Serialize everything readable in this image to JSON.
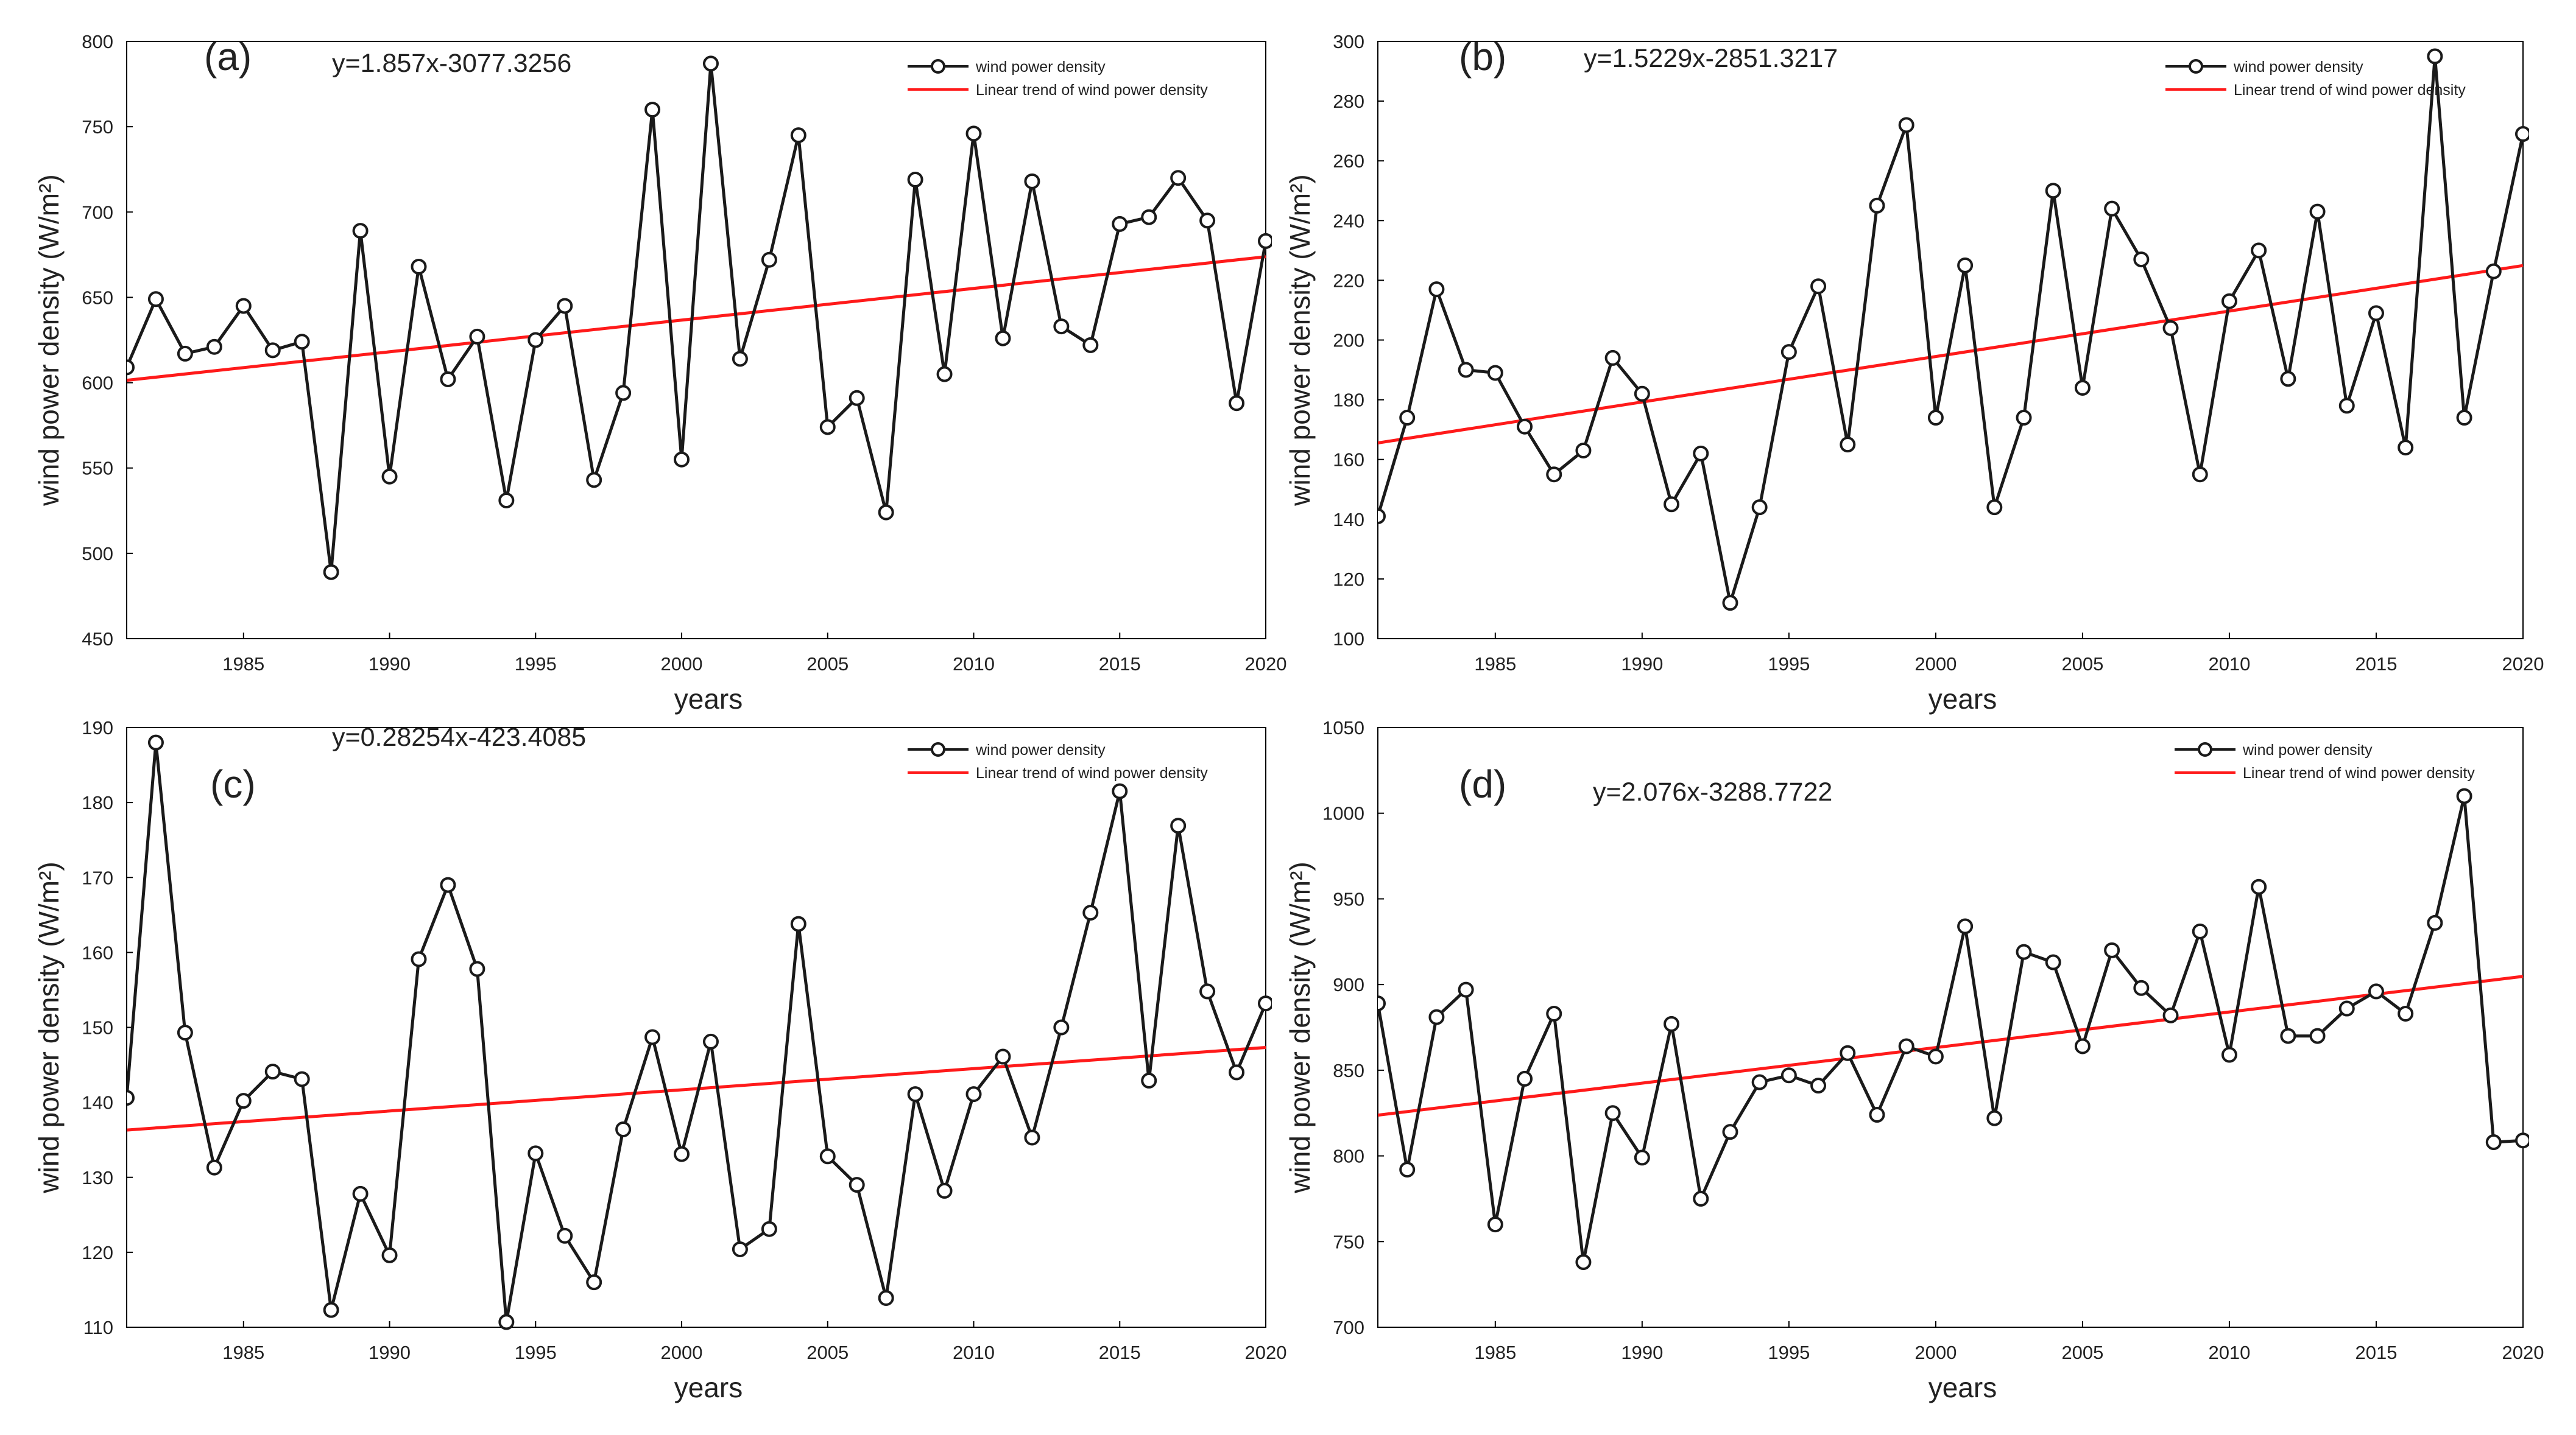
{
  "figure": {
    "x_label": "years",
    "y_label": "wind power density (W/m²)"
  },
  "colors": {
    "series": "#1a1a1a",
    "trend": "#ff1a1a",
    "axis": "#000000",
    "text": "#222222"
  },
  "chart_data": [
    {
      "type": "line",
      "panel_label": "(a)",
      "equation": "y=1.857x-3077.3256",
      "legend": [
        "wind power density",
        "Linear trend of wind power density"
      ],
      "xlabel": "years",
      "ylabel": "wind power density (W/m²)",
      "xlim": [
        1981,
        2020
      ],
      "ylim": [
        450,
        800
      ],
      "xticks": [
        1985,
        1990,
        1995,
        2000,
        2005,
        2010,
        2015,
        2020
      ],
      "yticks": [
        450,
        500,
        550,
        600,
        650,
        700,
        750,
        800
      ],
      "x": [
        1981,
        1982,
        1983,
        1984,
        1985,
        1986,
        1987,
        1988,
        1989,
        1990,
        1991,
        1992,
        1993,
        1994,
        1995,
        1996,
        1997,
        1998,
        1999,
        2000,
        2001,
        2002,
        2003,
        2004,
        2005,
        2006,
        2007,
        2008,
        2009,
        2010,
        2011,
        2012,
        2013,
        2014,
        2015,
        2016,
        2017,
        2018,
        2019,
        2020
      ],
      "series": [
        {
          "name": "wind power density",
          "values": [
            609,
            649,
            617,
            621,
            645,
            619,
            624,
            489,
            689,
            545,
            668,
            602,
            627,
            531,
            625,
            645,
            543,
            594,
            760,
            555,
            787,
            614,
            672,
            745,
            574,
            591,
            524,
            719,
            605,
            746,
            626,
            718,
            633,
            622,
            693,
            697,
            720,
            695,
            588,
            683
          ]
        }
      ],
      "trend": {
        "name": "Linear trend of wind power density",
        "slope": 1.857,
        "intercept": -3077.3256
      }
    },
    {
      "type": "line",
      "panel_label": "(b)",
      "equation": "y=1.5229x-2851.3217",
      "legend": [
        "wind power density",
        "Linear trend of wind power density"
      ],
      "xlabel": "years",
      "ylabel": "wind power density (W/m²)",
      "xlim": [
        1981,
        2020
      ],
      "ylim": [
        100,
        300
      ],
      "xticks": [
        1985,
        1990,
        1995,
        2000,
        2005,
        2010,
        2015,
        2020
      ],
      "yticks": [
        100,
        120,
        140,
        160,
        180,
        200,
        220,
        240,
        260,
        280,
        300
      ],
      "x": [
        1981,
        1982,
        1983,
        1984,
        1985,
        1986,
        1987,
        1988,
        1989,
        1990,
        1991,
        1992,
        1993,
        1994,
        1995,
        1996,
        1997,
        1998,
        1999,
        2000,
        2001,
        2002,
        2003,
        2004,
        2005,
        2006,
        2007,
        2008,
        2009,
        2010,
        2011,
        2012,
        2013,
        2014,
        2015,
        2016,
        2017,
        2018,
        2019,
        2020
      ],
      "series": [
        {
          "name": "wind power density",
          "values": [
            141,
            174,
            217,
            190,
            189,
            171,
            155,
            163,
            194,
            182,
            145,
            162,
            112,
            144,
            196,
            218,
            165,
            245,
            272,
            174,
            225,
            144,
            174,
            250,
            184,
            244,
            227,
            204,
            155,
            213,
            230,
            187,
            243,
            178,
            209,
            164,
            295,
            174,
            223,
            269
          ]
        }
      ],
      "trend": {
        "name": "Linear trend of wind power density",
        "slope": 1.5229,
        "intercept": -2851.3217
      }
    },
    {
      "type": "line",
      "panel_label": "(c)",
      "equation": "y=0.28254x-423.4085",
      "legend": [
        "wind power density",
        "Linear trend of wind power density"
      ],
      "xlabel": "years",
      "ylabel": "wind power density (W/m²)",
      "xlim": [
        1981,
        2020
      ],
      "ylim": [
        110,
        190
      ],
      "xticks": [
        1985,
        1990,
        1995,
        2000,
        2005,
        2010,
        2015,
        2020
      ],
      "yticks": [
        110,
        120,
        130,
        140,
        150,
        160,
        170,
        180,
        190
      ],
      "x": [
        1981,
        1982,
        1983,
        1984,
        1985,
        1986,
        1987,
        1988,
        1989,
        1990,
        1991,
        1992,
        1993,
        1994,
        1995,
        1996,
        1997,
        1998,
        1999,
        2000,
        2001,
        2002,
        2003,
        2004,
        2005,
        2006,
        2007,
        2008,
        2009,
        2010,
        2011,
        2012,
        2013,
        2014,
        2015,
        2016,
        2017,
        2018,
        2019,
        2020
      ],
      "series": [
        {
          "name": "wind power density",
          "values": [
            140.6,
            188,
            149.3,
            131.3,
            140.2,
            144.1,
            143.1,
            112.3,
            127.8,
            119.6,
            159.1,
            169,
            157.8,
            110.7,
            133.2,
            122.2,
            116,
            136.4,
            148.7,
            133.1,
            148.1,
            120.4,
            123.1,
            163.8,
            132.8,
            129,
            113.9,
            141.1,
            128.2,
            141.1,
            146.1,
            135.3,
            150,
            165.3,
            181.5,
            142.9,
            176.9,
            154.8,
            144,
            153.2
          ]
        }
      ],
      "trend": {
        "name": "Linear trend of wind power density",
        "slope": 0.28254,
        "intercept": -423.4085
      }
    },
    {
      "type": "line",
      "panel_label": "(d)",
      "equation": "y=2.076x-3288.7722",
      "legend": [
        "wind power density",
        "Linear trend of wind power density"
      ],
      "xlabel": "years",
      "ylabel": "wind power density (W/m²)",
      "xlim": [
        1981,
        2020
      ],
      "ylim": [
        700,
        1050
      ],
      "xticks": [
        1985,
        1990,
        1995,
        2000,
        2005,
        2010,
        2015,
        2020
      ],
      "yticks": [
        700,
        750,
        800,
        850,
        900,
        950,
        1000,
        1050
      ],
      "x": [
        1981,
        1982,
        1983,
        1984,
        1985,
        1986,
        1987,
        1988,
        1989,
        1990,
        1991,
        1992,
        1993,
        1994,
        1995,
        1996,
        1997,
        1998,
        1999,
        2000,
        2001,
        2002,
        2003,
        2004,
        2005,
        2006,
        2007,
        2008,
        2009,
        2010,
        2011,
        2012,
        2013,
        2014,
        2015,
        2016,
        2017,
        2018,
        2019,
        2020
      ],
      "series": [
        {
          "name": "wind power density",
          "values": [
            889,
            792,
            881,
            897,
            760,
            845,
            883,
            738,
            825,
            799,
            877,
            775,
            814,
            843,
            847,
            841,
            860,
            824,
            864,
            858,
            934,
            822,
            919,
            913,
            864,
            920,
            898,
            882,
            931,
            859,
            957,
            870,
            870,
            886,
            896,
            883,
            936,
            1010,
            808,
            809
          ]
        }
      ],
      "trend": {
        "name": "Linear trend of wind power density",
        "slope": 2.076,
        "intercept": -3288.7722
      }
    }
  ]
}
